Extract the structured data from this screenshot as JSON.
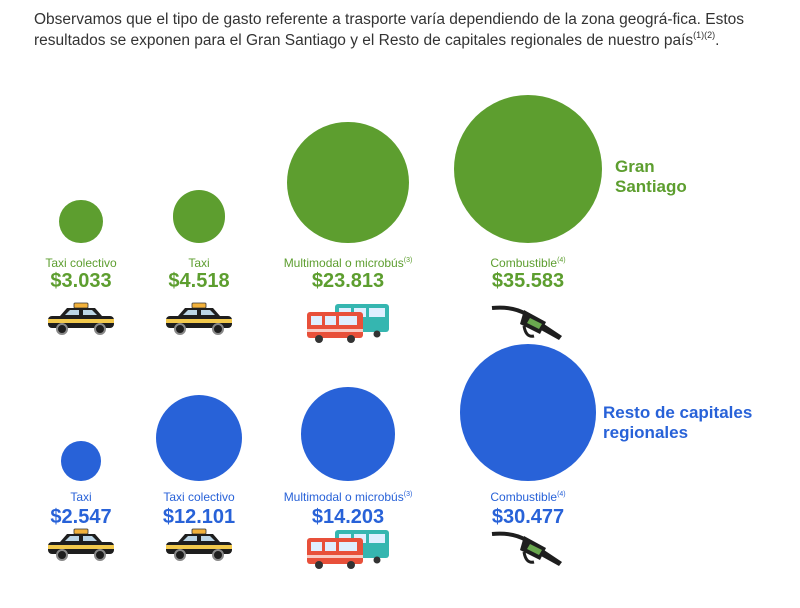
{
  "intro": {
    "text": "Observamos que el tipo de gasto referente a trasporte varía dependiendo de la zona geográ-fica. Estos resultados se exponen para el Gran Santiago y el Resto de capitales regionales de nuestro país",
    "refs": "(1)(2)",
    "end": "."
  },
  "colors": {
    "gran_santiago": "#5d9e2f",
    "resto": "#2862d8"
  },
  "chart_data": [
    {
      "type": "bubble",
      "title": "Gran Santiago",
      "categories": [
        "Taxi colectivo",
        "Taxi",
        "Multimodal o microbús",
        "Combustible"
      ],
      "category_refs": [
        "",
        "",
        "(3)",
        "(4)"
      ],
      "values": [
        3033,
        4518,
        23813,
        35583
      ],
      "value_labels": [
        "$3.033",
        "$4.518",
        "$23.813",
        "$35.583"
      ],
      "icons": [
        "taxi-icon",
        "taxi-icon",
        "bus-icon",
        "fuel-nozzle-icon"
      ],
      "color": "#5d9e2f"
    },
    {
      "type": "bubble",
      "title": "Resto de capitales regionales",
      "categories": [
        "Taxi",
        "Taxi colectivo",
        "Multimodal o microbús",
        "Combustible"
      ],
      "category_refs": [
        "",
        "",
        "(3)",
        "(4)"
      ],
      "values": [
        2547,
        12101,
        14203,
        30477
      ],
      "value_labels": [
        "$2.547",
        "$12.101",
        "$14.203",
        "$30.477"
      ],
      "icons": [
        "taxi-icon",
        "taxi-icon",
        "bus-icon",
        "fuel-nozzle-icon"
      ],
      "color": "#2862d8"
    }
  ],
  "labels": {
    "gran_santiago_line1": "Gran",
    "gran_santiago_line2": "Santiago",
    "resto_line1": "Resto de capitales",
    "resto_line2": "regionales"
  }
}
